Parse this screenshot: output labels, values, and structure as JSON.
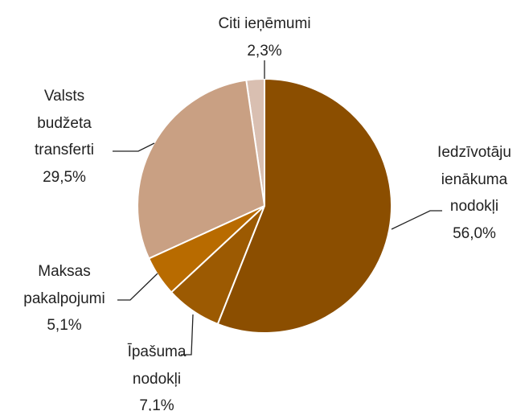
{
  "chart_data": {
    "type": "pie",
    "categories": [
      "Iedzīvotāju ienākuma nodokļi",
      "Īpašuma nodokļi",
      "Maksas pakalpojumi",
      "Valsts budžeta transferti",
      "Citi ieņēmumi"
    ],
    "values": [
      56.0,
      7.1,
      5.1,
      29.5,
      2.3
    ],
    "value_labels": [
      "56,0%",
      "7,1%",
      "5,1%",
      "29,5%",
      "2,3%"
    ],
    "colors": [
      "#8b4e00",
      "#9c5a02",
      "#b86b00",
      "#c9a083",
      "#d9bfb1"
    ]
  }
}
